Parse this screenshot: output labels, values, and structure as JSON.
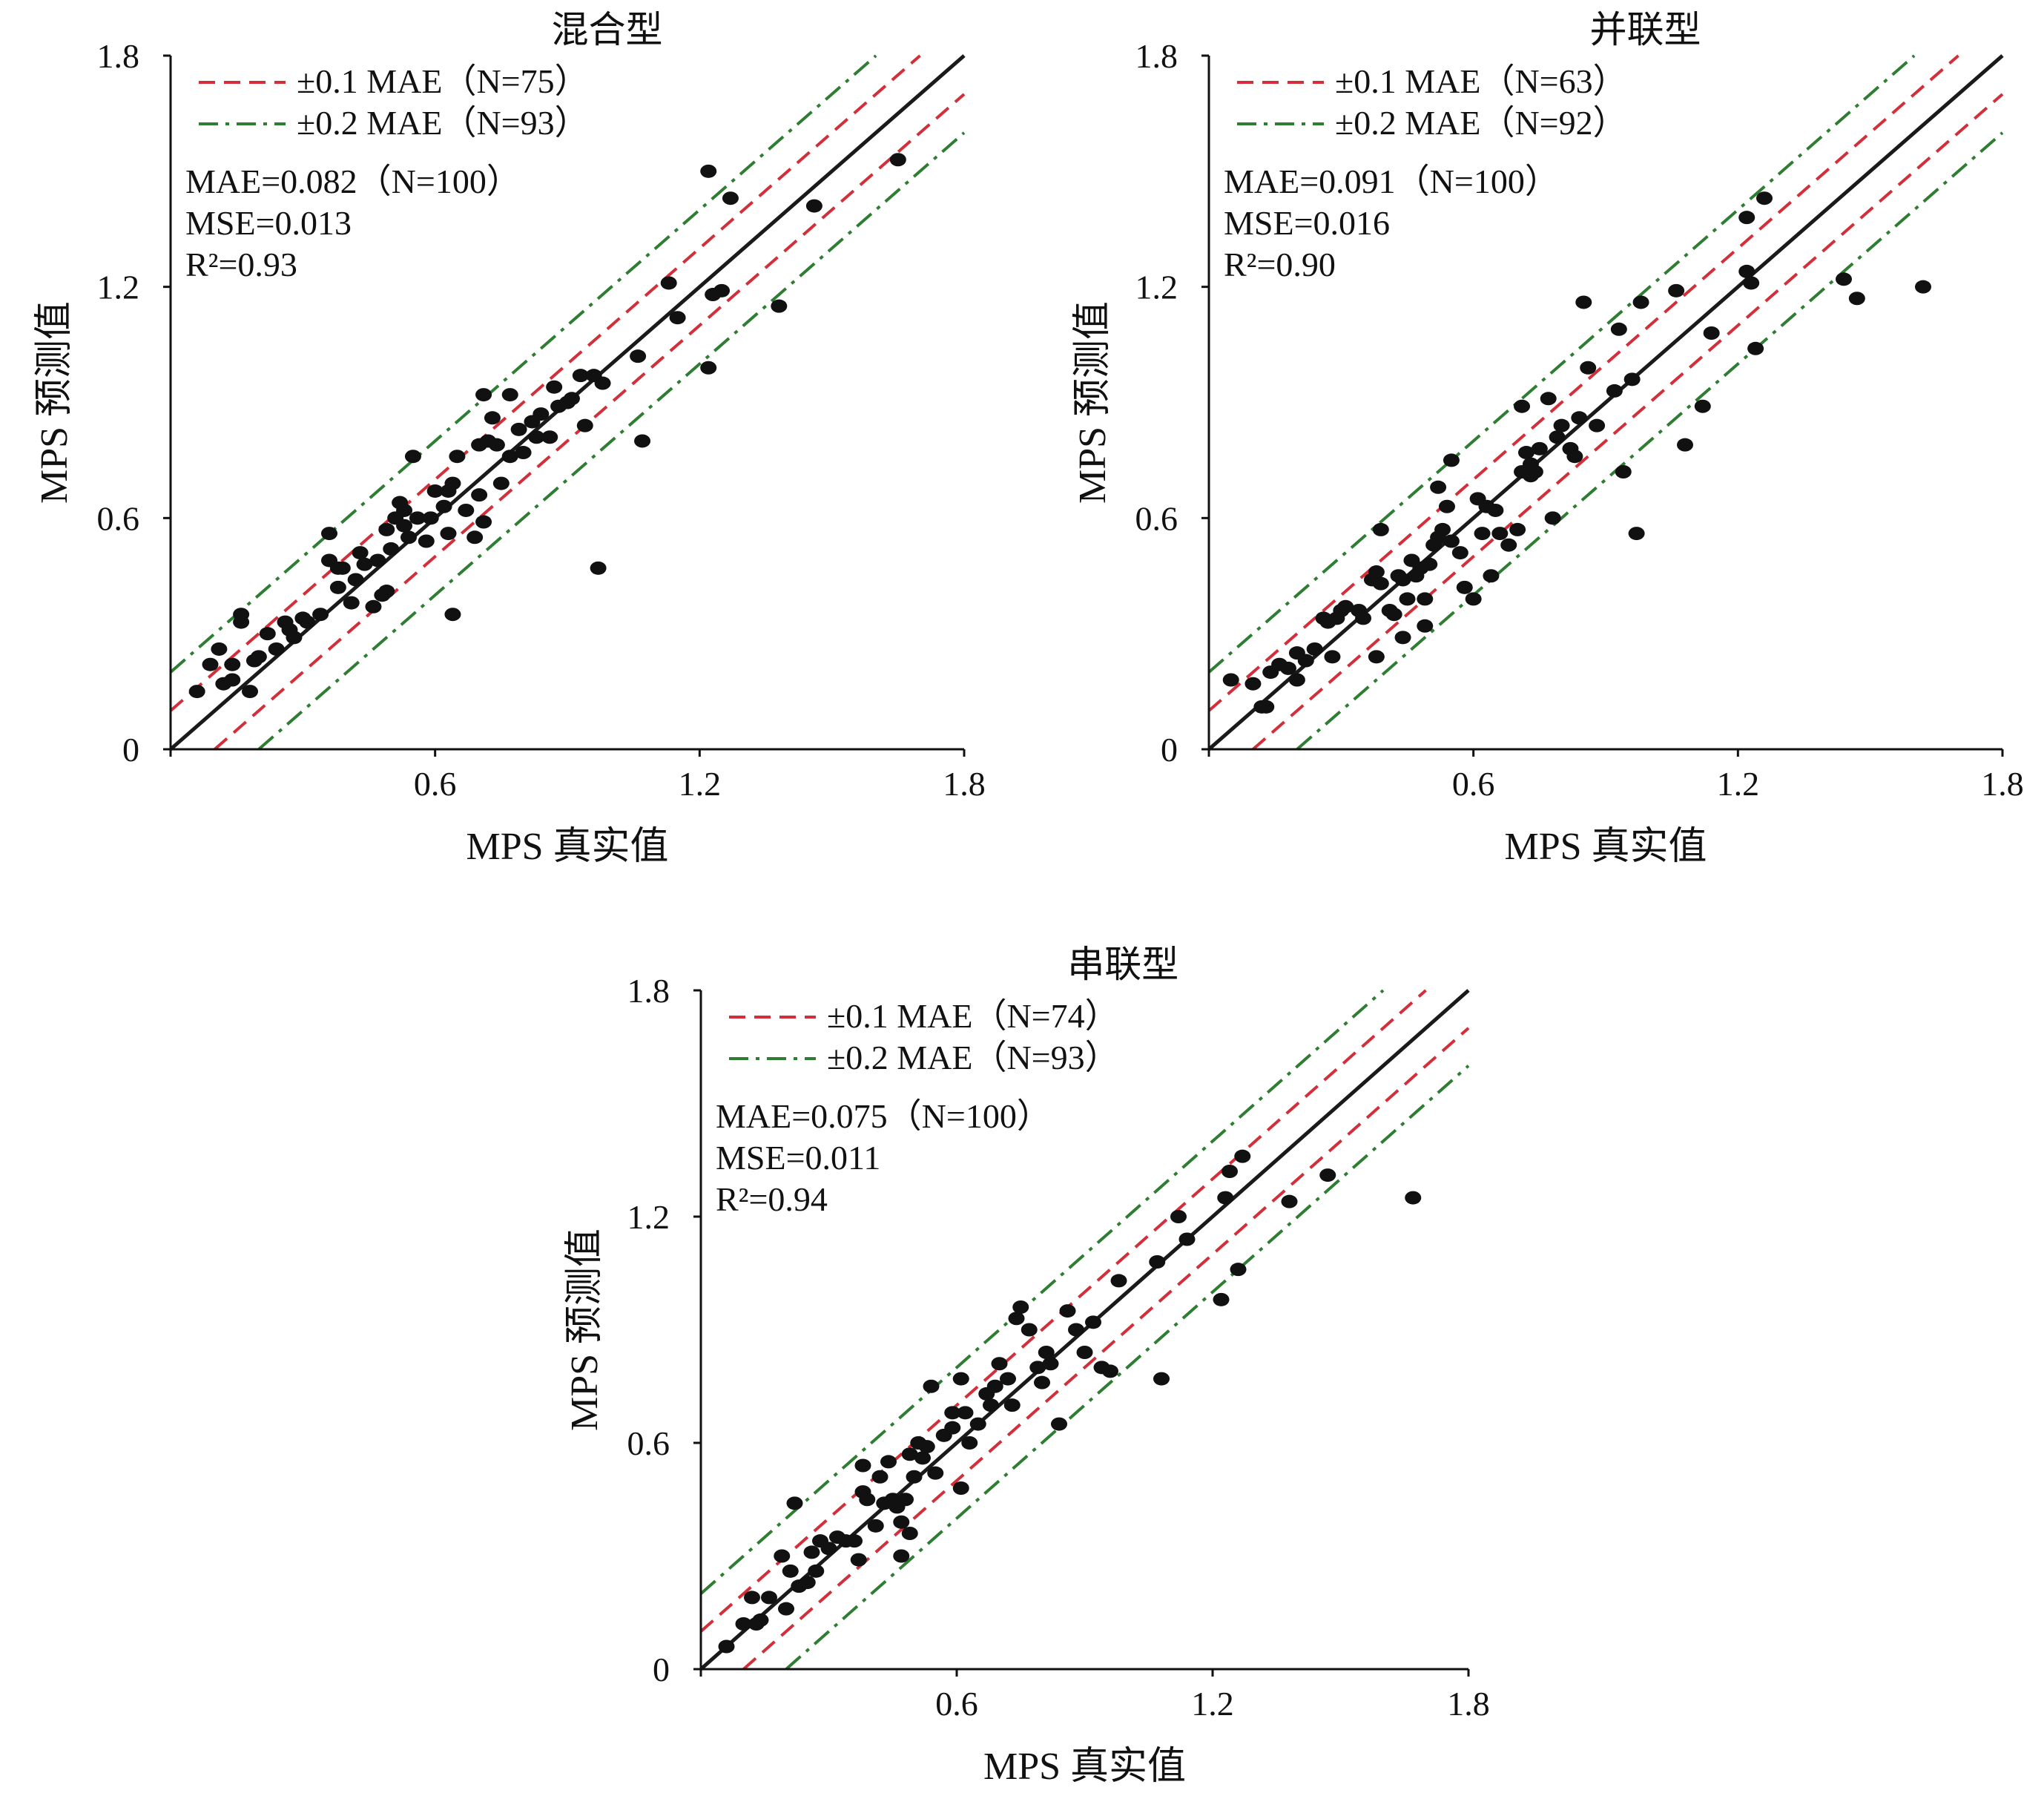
{
  "figure": {
    "x_axis_label": "MPS 真实值",
    "y_axis_label": "MPS 预测值",
    "tick_labels": [
      "0",
      "0.6",
      "1.2",
      "1.8"
    ],
    "colors": {
      "identity_line": "#1a1a1a",
      "band_01": "#d32f3a",
      "band_02": "#2e7d32",
      "points": "#111111"
    }
  },
  "chart_data": [
    {
      "type": "scatter",
      "title": "混合型",
      "xlabel": "MPS 真实值",
      "ylabel": "MPS 预测值",
      "xlim": [
        0,
        1.8
      ],
      "ylim": [
        0,
        1.8
      ],
      "ticks": [
        0,
        0.6,
        1.2,
        1.8
      ],
      "grid": false,
      "legend_position": "top-left",
      "legend": [
        {
          "label": "±0.1 MAE（N=75）",
          "style": "dashed",
          "color": "#d32f3a",
          "offset": 0.1
        },
        {
          "label": "±0.2 MAE（N=93）",
          "style": "dash-dot",
          "color": "#2e7d32",
          "offset": 0.2
        }
      ],
      "stats": {
        "mae": "MAE=0.082（N=100）",
        "mse": "MSE=0.013",
        "r2": "R²=0.93"
      },
      "points": [
        [
          0.06,
          0.15
        ],
        [
          0.09,
          0.22
        ],
        [
          0.11,
          0.26
        ],
        [
          0.12,
          0.17
        ],
        [
          0.14,
          0.18
        ],
        [
          0.14,
          0.22
        ],
        [
          0.16,
          0.33
        ],
        [
          0.16,
          0.35
        ],
        [
          0.18,
          0.15
        ],
        [
          0.19,
          0.23
        ],
        [
          0.2,
          0.24
        ],
        [
          0.22,
          0.3
        ],
        [
          0.24,
          0.26
        ],
        [
          0.26,
          0.33
        ],
        [
          0.27,
          0.31
        ],
        [
          0.28,
          0.29
        ],
        [
          0.3,
          0.34
        ],
        [
          0.31,
          0.33
        ],
        [
          0.34,
          0.35
        ],
        [
          0.36,
          0.49
        ],
        [
          0.36,
          0.56
        ],
        [
          0.38,
          0.42
        ],
        [
          0.38,
          0.47
        ],
        [
          0.39,
          0.47
        ],
        [
          0.41,
          0.38
        ],
        [
          0.42,
          0.44
        ],
        [
          0.43,
          0.51
        ],
        [
          0.44,
          0.48
        ],
        [
          0.46,
          0.37
        ],
        [
          0.47,
          0.49
        ],
        [
          0.48,
          0.4
        ],
        [
          0.49,
          0.41
        ],
        [
          0.49,
          0.57
        ],
        [
          0.5,
          0.52
        ],
        [
          0.51,
          0.6
        ],
        [
          0.52,
          0.64
        ],
        [
          0.53,
          0.58
        ],
        [
          0.53,
          0.62
        ],
        [
          0.54,
          0.55
        ],
        [
          0.55,
          0.76
        ],
        [
          0.56,
          0.6
        ],
        [
          0.58,
          0.54
        ],
        [
          0.59,
          0.6
        ],
        [
          0.6,
          0.67
        ],
        [
          0.62,
          0.63
        ],
        [
          0.63,
          0.67
        ],
        [
          0.63,
          0.56
        ],
        [
          0.64,
          0.69
        ],
        [
          0.64,
          0.35
        ],
        [
          0.65,
          0.76
        ],
        [
          0.67,
          0.62
        ],
        [
          0.69,
          0.55
        ],
        [
          0.7,
          0.66
        ],
        [
          0.7,
          0.79
        ],
        [
          0.71,
          0.92
        ],
        [
          0.71,
          0.59
        ],
        [
          0.72,
          0.8
        ],
        [
          0.73,
          0.86
        ],
        [
          0.74,
          0.79
        ],
        [
          0.75,
          0.69
        ],
        [
          0.77,
          0.76
        ],
        [
          0.77,
          0.92
        ],
        [
          0.79,
          0.83
        ],
        [
          0.8,
          0.77
        ],
        [
          0.82,
          0.85
        ],
        [
          0.83,
          0.81
        ],
        [
          0.84,
          0.87
        ],
        [
          0.86,
          0.81
        ],
        [
          0.87,
          0.94
        ],
        [
          0.88,
          0.89
        ],
        [
          0.9,
          0.9
        ],
        [
          0.91,
          0.91
        ],
        [
          0.93,
          0.97
        ],
        [
          0.94,
          0.84
        ],
        [
          0.96,
          0.97
        ],
        [
          0.97,
          0.47
        ],
        [
          0.98,
          0.95
        ],
        [
          1.06,
          1.02
        ],
        [
          1.07,
          0.8
        ],
        [
          1.13,
          1.21
        ],
        [
          1.15,
          1.12
        ],
        [
          1.22,
          1.5
        ],
        [
          1.22,
          0.99
        ],
        [
          1.23,
          1.18
        ],
        [
          1.25,
          1.19
        ],
        [
          1.27,
          1.43
        ],
        [
          1.38,
          1.15
        ],
        [
          1.46,
          1.41
        ],
        [
          1.65,
          1.53
        ]
      ]
    },
    {
      "type": "scatter",
      "title": "并联型",
      "xlabel": "MPS 真实值",
      "ylabel": "MPS 预测值",
      "xlim": [
        0,
        1.8
      ],
      "ylim": [
        0,
        1.8
      ],
      "ticks": [
        0,
        0.6,
        1.2,
        1.8
      ],
      "grid": false,
      "legend_position": "top-left",
      "legend": [
        {
          "label": "±0.1 MAE（N=63）",
          "style": "dashed",
          "color": "#d32f3a",
          "offset": 0.1
        },
        {
          "label": "±0.2 MAE（N=92）",
          "style": "dash-dot",
          "color": "#2e7d32",
          "offset": 0.2
        }
      ],
      "stats": {
        "mae": "MAE=0.091（N=100）",
        "mse": "MSE=0.016",
        "r2": "R²=0.90"
      },
      "points": [
        [
          0.05,
          0.18
        ],
        [
          0.1,
          0.17
        ],
        [
          0.12,
          0.11
        ],
        [
          0.13,
          0.11
        ],
        [
          0.14,
          0.2
        ],
        [
          0.16,
          0.22
        ],
        [
          0.18,
          0.21
        ],
        [
          0.2,
          0.25
        ],
        [
          0.2,
          0.18
        ],
        [
          0.22,
          0.23
        ],
        [
          0.24,
          0.26
        ],
        [
          0.26,
          0.34
        ],
        [
          0.27,
          0.33
        ],
        [
          0.28,
          0.24
        ],
        [
          0.29,
          0.34
        ],
        [
          0.3,
          0.36
        ],
        [
          0.31,
          0.37
        ],
        [
          0.34,
          0.36
        ],
        [
          0.35,
          0.34
        ],
        [
          0.37,
          0.44
        ],
        [
          0.38,
          0.46
        ],
        [
          0.38,
          0.24
        ],
        [
          0.39,
          0.57
        ],
        [
          0.39,
          0.43
        ],
        [
          0.41,
          0.36
        ],
        [
          0.42,
          0.35
        ],
        [
          0.43,
          0.45
        ],
        [
          0.44,
          0.44
        ],
        [
          0.44,
          0.29
        ],
        [
          0.45,
          0.39
        ],
        [
          0.46,
          0.49
        ],
        [
          0.47,
          0.45
        ],
        [
          0.48,
          0.47
        ],
        [
          0.49,
          0.39
        ],
        [
          0.49,
          0.32
        ],
        [
          0.5,
          0.48
        ],
        [
          0.51,
          0.53
        ],
        [
          0.52,
          0.55
        ],
        [
          0.52,
          0.68
        ],
        [
          0.53,
          0.57
        ],
        [
          0.54,
          0.63
        ],
        [
          0.55,
          0.75
        ],
        [
          0.55,
          0.54
        ],
        [
          0.57,
          0.51
        ],
        [
          0.58,
          0.42
        ],
        [
          0.6,
          0.39
        ],
        [
          0.61,
          0.65
        ],
        [
          0.62,
          0.56
        ],
        [
          0.63,
          0.63
        ],
        [
          0.64,
          0.45
        ],
        [
          0.65,
          0.62
        ],
        [
          0.66,
          0.56
        ],
        [
          0.68,
          0.53
        ],
        [
          0.7,
          0.57
        ],
        [
          0.71,
          0.72
        ],
        [
          0.71,
          0.89
        ],
        [
          0.72,
          0.77
        ],
        [
          0.73,
          0.71
        ],
        [
          0.73,
          0.74
        ],
        [
          0.74,
          0.72
        ],
        [
          0.75,
          0.78
        ],
        [
          0.77,
          0.91
        ],
        [
          0.78,
          0.6
        ],
        [
          0.79,
          0.81
        ],
        [
          0.8,
          0.84
        ],
        [
          0.82,
          0.78
        ],
        [
          0.83,
          0.76
        ],
        [
          0.84,
          0.86
        ],
        [
          0.85,
          1.16
        ],
        [
          0.86,
          0.99
        ],
        [
          0.88,
          0.84
        ],
        [
          0.92,
          0.93
        ],
        [
          0.93,
          1.09
        ],
        [
          0.94,
          0.72
        ],
        [
          0.96,
          0.96
        ],
        [
          0.97,
          0.56
        ],
        [
          0.98,
          1.16
        ],
        [
          1.06,
          1.19
        ],
        [
          1.08,
          0.79
        ],
        [
          1.12,
          0.89
        ],
        [
          1.14,
          1.08
        ],
        [
          1.22,
          1.38
        ],
        [
          1.22,
          1.24
        ],
        [
          1.23,
          1.21
        ],
        [
          1.24,
          1.04
        ],
        [
          1.26,
          1.43
        ],
        [
          1.44,
          1.22
        ],
        [
          1.62,
          1.2
        ],
        [
          1.47,
          1.17
        ]
      ]
    },
    {
      "type": "scatter",
      "title": "串联型",
      "xlabel": "MPS 真实值",
      "ylabel": "MPS 预测值",
      "xlim": [
        0,
        1.8
      ],
      "ylim": [
        0,
        1.8
      ],
      "ticks": [
        0,
        0.6,
        1.2,
        1.8
      ],
      "grid": false,
      "legend_position": "top-left",
      "legend": [
        {
          "label": "±0.1 MAE（N=74）",
          "style": "dashed",
          "color": "#d32f3a",
          "offset": 0.1
        },
        {
          "label": "±0.2 MAE（N=93）",
          "style": "dash-dot",
          "color": "#2e7d32",
          "offset": 0.2
        }
      ],
      "stats": {
        "mae": "MAE=0.075（N=100）",
        "mse": "MSE=0.011",
        "r2": "R²=0.94"
      },
      "points": [
        [
          0.06,
          0.06
        ],
        [
          0.1,
          0.12
        ],
        [
          0.12,
          0.19
        ],
        [
          0.13,
          0.12
        ],
        [
          0.14,
          0.13
        ],
        [
          0.16,
          0.19
        ],
        [
          0.19,
          0.3
        ],
        [
          0.2,
          0.16
        ],
        [
          0.21,
          0.26
        ],
        [
          0.22,
          0.44
        ],
        [
          0.23,
          0.22
        ],
        [
          0.25,
          0.23
        ],
        [
          0.26,
          0.31
        ],
        [
          0.27,
          0.26
        ],
        [
          0.28,
          0.34
        ],
        [
          0.3,
          0.32
        ],
        [
          0.32,
          0.35
        ],
        [
          0.34,
          0.34
        ],
        [
          0.36,
          0.34
        ],
        [
          0.37,
          0.29
        ],
        [
          0.38,
          0.54
        ],
        [
          0.38,
          0.47
        ],
        [
          0.39,
          0.45
        ],
        [
          0.41,
          0.38
        ],
        [
          0.42,
          0.51
        ],
        [
          0.43,
          0.44
        ],
        [
          0.44,
          0.55
        ],
        [
          0.45,
          0.45
        ],
        [
          0.46,
          0.43
        ],
        [
          0.47,
          0.39
        ],
        [
          0.47,
          0.3
        ],
        [
          0.48,
          0.45
        ],
        [
          0.49,
          0.36
        ],
        [
          0.49,
          0.57
        ],
        [
          0.5,
          0.51
        ],
        [
          0.51,
          0.6
        ],
        [
          0.52,
          0.56
        ],
        [
          0.53,
          0.59
        ],
        [
          0.54,
          0.75
        ],
        [
          0.55,
          0.52
        ],
        [
          0.57,
          0.62
        ],
        [
          0.59,
          0.64
        ],
        [
          0.59,
          0.68
        ],
        [
          0.61,
          0.77
        ],
        [
          0.61,
          0.48
        ],
        [
          0.62,
          0.68
        ],
        [
          0.63,
          0.6
        ],
        [
          0.65,
          0.65
        ],
        [
          0.67,
          0.73
        ],
        [
          0.68,
          0.7
        ],
        [
          0.69,
          0.75
        ],
        [
          0.7,
          0.81
        ],
        [
          0.72,
          0.77
        ],
        [
          0.73,
          0.7
        ],
        [
          0.74,
          0.93
        ],
        [
          0.75,
          0.96
        ],
        [
          0.77,
          0.9
        ],
        [
          0.79,
          0.8
        ],
        [
          0.8,
          0.76
        ],
        [
          0.81,
          0.84
        ],
        [
          0.82,
          0.81
        ],
        [
          0.84,
          0.65
        ],
        [
          0.86,
          0.95
        ],
        [
          0.88,
          0.9
        ],
        [
          0.9,
          0.84
        ],
        [
          0.92,
          0.92
        ],
        [
          0.94,
          0.8
        ],
        [
          0.96,
          0.79
        ],
        [
          0.98,
          1.03
        ],
        [
          1.07,
          1.08
        ],
        [
          1.08,
          0.77
        ],
        [
          1.12,
          1.2
        ],
        [
          1.14,
          1.14
        ],
        [
          1.22,
          0.98
        ],
        [
          1.23,
          1.25
        ],
        [
          1.24,
          1.32
        ],
        [
          1.26,
          1.06
        ],
        [
          1.27,
          1.36
        ],
        [
          1.38,
          1.24
        ],
        [
          1.47,
          1.31
        ],
        [
          1.67,
          1.25
        ]
      ]
    }
  ]
}
